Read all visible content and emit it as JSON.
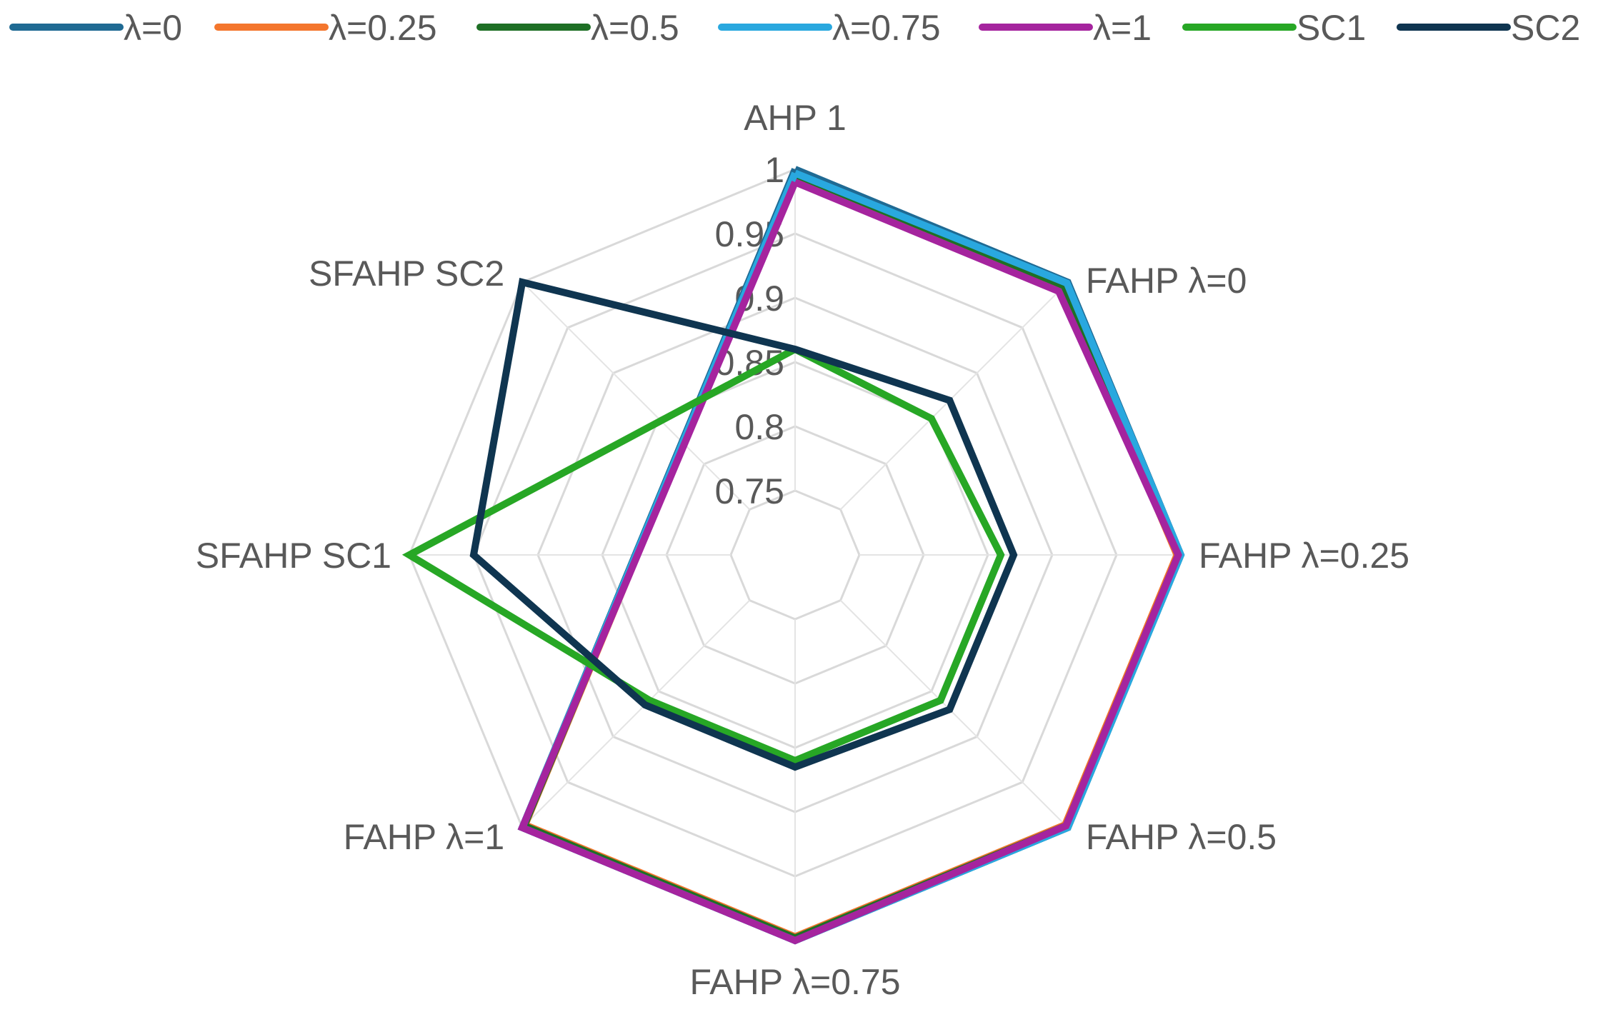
{
  "chart_data": {
    "type": "radar",
    "categories": [
      "AHP 1",
      "FAHP λ=0",
      "FAHP λ=0.25",
      "FAHP λ=0.5",
      "FAHP λ=0.75",
      "FAHP λ=1",
      "SFAHP SC1",
      "SFAHP SC2"
    ],
    "r_ticks": [
      0.75,
      0.8,
      0.85,
      0.9,
      0.95,
      1
    ],
    "r_tick_labels": [
      "0.75",
      "0.8",
      "0.85",
      "0.9",
      "0.95",
      "1"
    ],
    "rlim": [
      0.7,
      1
    ],
    "grid": true,
    "legend_position": "top",
    "series": [
      {
        "name": "λ=0",
        "color": "#1F6A93",
        "values": [
          1,
          1,
          1,
          1,
          1,
          1,
          null,
          null
        ]
      },
      {
        "name": "λ=0.25",
        "color": "#F4762D",
        "values": [
          0.995,
          0.995,
          0.997,
          0.997,
          0.997,
          0.997,
          null,
          null
        ]
      },
      {
        "name": "λ=0.5",
        "color": "#1E6F25",
        "values": [
          0.996,
          0.996,
          0.998,
          0.998,
          0.998,
          0.998,
          null,
          null
        ]
      },
      {
        "name": "λ=0.75",
        "color": "#29A8DF",
        "values": [
          0.997,
          0.999,
          1,
          1,
          1,
          1,
          null,
          null
        ]
      },
      {
        "name": "λ=1",
        "color": "#A5249E",
        "values": [
          0.99,
          0.99,
          0.998,
          0.998,
          1,
          1,
          null,
          null
        ]
      },
      {
        "name": "SC1",
        "color": "#27A725",
        "values": [
          0.86,
          0.85,
          0.86,
          0.86,
          0.86,
          0.86,
          1,
          null
        ]
      },
      {
        "name": "SC2",
        "color": "#0F3550",
        "values": [
          0.86,
          0.87,
          0.87,
          0.87,
          0.865,
          0.865,
          0.95,
          1
        ]
      }
    ]
  }
}
